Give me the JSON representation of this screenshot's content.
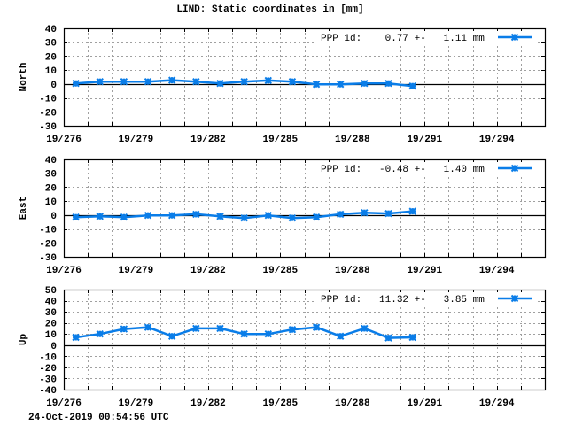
{
  "title": "LIND: Static coordinates in [mm]",
  "footer": "24-Oct-2019 00:54:56 UTC",
  "chart_data": [
    {
      "type": "line",
      "title": "LIND: Static coordinates in [mm]",
      "ylabel": "North",
      "xlabel": "",
      "xlim": [
        276,
        296
      ],
      "ylim": [
        -30,
        40
      ],
      "yticks": [
        -30,
        -20,
        -10,
        0,
        10,
        20,
        30,
        40
      ],
      "xticks": [
        276,
        279,
        282,
        285,
        288,
        291,
        294
      ],
      "xtick_labels": [
        "19/276",
        "19/279",
        "19/282",
        "19/285",
        "19/288",
        "19/291",
        "19/294"
      ],
      "grid": true,
      "legend_position": "top-right",
      "legend": "PPP 1d:    0.77 +-   1.11 mm",
      "series": [
        {
          "name": "PPP 1d",
          "mean": 0.77,
          "sigma": 1.11,
          "x": [
            276.5,
            277.5,
            278.5,
            279.5,
            280.5,
            281.5,
            282.5,
            283.5,
            284.5,
            285.5,
            286.5,
            287.5,
            288.5,
            289.5,
            290.5
          ],
          "values": [
            0.4,
            1.7,
            1.7,
            1.7,
            2.7,
            1.7,
            0.4,
            1.7,
            2.5,
            1.7,
            -0.2,
            -0.2,
            0.4,
            0.4,
            -1.5
          ]
        }
      ]
    },
    {
      "type": "line",
      "ylabel": "East",
      "xlabel": "",
      "xlim": [
        276,
        296
      ],
      "ylim": [
        -30,
        40
      ],
      "yticks": [
        -30,
        -20,
        -10,
        0,
        10,
        20,
        30,
        40
      ],
      "xticks": [
        276,
        279,
        282,
        285,
        288,
        291,
        294
      ],
      "xtick_labels": [
        "19/276",
        "19/279",
        "19/282",
        "19/285",
        "19/288",
        "19/291",
        "19/294"
      ],
      "grid": true,
      "legend_position": "top-right",
      "legend": "PPP 1d:   -0.48 +-   1.40 mm",
      "series": [
        {
          "name": "PPP 1d",
          "mean": -0.48,
          "sigma": 1.4,
          "x": [
            276.5,
            277.5,
            278.5,
            279.5,
            280.5,
            281.5,
            282.5,
            283.5,
            284.5,
            285.5,
            286.5,
            287.5,
            288.5,
            289.5,
            290.5
          ],
          "values": [
            -1.5,
            -0.9,
            -1.5,
            -0.2,
            -0.2,
            0.6,
            -0.9,
            -2.1,
            -0.2,
            -2.1,
            -1.5,
            0.6,
            1.7,
            1.1,
            2.7
          ]
        }
      ]
    },
    {
      "type": "line",
      "ylabel": "Up",
      "xlabel": "",
      "xlim": [
        276,
        296
      ],
      "ylim": [
        -40,
        50
      ],
      "yticks": [
        -40,
        -30,
        -20,
        -10,
        0,
        10,
        20,
        30,
        40,
        50
      ],
      "xticks": [
        276,
        279,
        282,
        285,
        288,
        291,
        294
      ],
      "xtick_labels": [
        "19/276",
        "19/279",
        "19/282",
        "19/285",
        "19/288",
        "19/291",
        "19/294"
      ],
      "grid": true,
      "legend_position": "top-right",
      "legend": "PPP 1d:   11.32 +-   3.85 mm",
      "series": [
        {
          "name": "PPP 1d",
          "mean": 11.32,
          "sigma": 3.85,
          "x": [
            276.5,
            277.5,
            278.5,
            279.5,
            280.5,
            281.5,
            282.5,
            283.5,
            284.5,
            285.5,
            286.5,
            287.5,
            288.5,
            289.5,
            290.5
          ],
          "values": [
            7,
            10,
            14.5,
            16,
            8,
            15,
            15,
            10,
            10,
            14,
            16,
            8,
            15,
            6.5,
            7
          ]
        }
      ]
    }
  ],
  "style": {
    "series_color": "#0a7de8",
    "axis_color": "#000000",
    "grid_color": "#a0a0a0",
    "background": "#ffffff"
  }
}
